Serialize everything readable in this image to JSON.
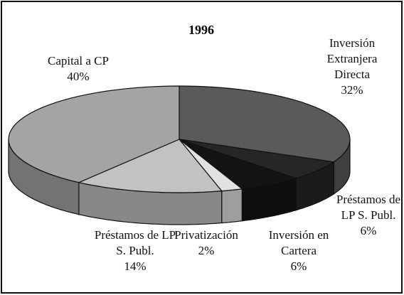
{
  "chart_data": {
    "type": "pie3d",
    "title": "1996",
    "categories": [
      "Inversión Extranjera Directa",
      "Préstamos de LP S. Publ.",
      "Inversión en Cartera",
      "Privatización",
      "Préstamos de LP S. Publ.",
      "Capital a CP"
    ],
    "values": [
      32,
      6,
      6,
      2,
      14,
      40
    ],
    "value_labels": [
      "32%",
      "6%",
      "6%",
      "2%",
      "14%",
      "40%"
    ],
    "colors": [
      "#5a5a5a",
      "#262626",
      "#141414",
      "#e2e2e2",
      "#c2c2c2",
      "#a4a4a4"
    ]
  }
}
